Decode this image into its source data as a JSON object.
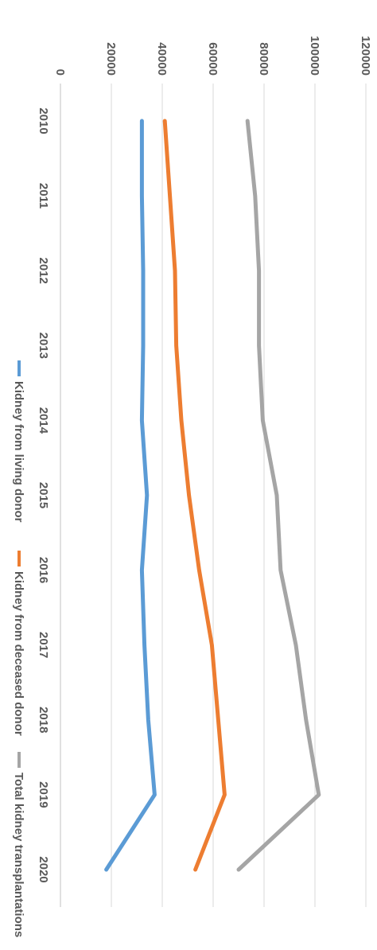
{
  "chart_data": {
    "type": "line",
    "orientation": "rotated-90-clockwise",
    "title": "",
    "xlabel": "",
    "ylabel": "",
    "x": [
      "2010",
      "2011",
      "2012",
      "2013",
      "2014",
      "2015",
      "2016",
      "2017",
      "2018",
      "2019",
      "2020"
    ],
    "ylim": [
      0,
      120000
    ],
    "yticks": [
      "0",
      "20000",
      "40000",
      "60000",
      "80000",
      "100000",
      "120000"
    ],
    "grid": true,
    "legend_position": "right",
    "series": [
      {
        "name": "Kidney from living donor",
        "color": "#5b9bd5",
        "values": [
          32000,
          32000,
          32500,
          32500,
          32000,
          34000,
          32000,
          33000,
          34500,
          37000,
          18000
        ]
      },
      {
        "name": "Kidney from deceased donor",
        "color": "#ed7d31",
        "values": [
          41000,
          43000,
          45000,
          45500,
          47500,
          50500,
          54500,
          59500,
          62000,
          64500,
          53000
        ]
      },
      {
        "name": "Total kidney transplantations",
        "color": "#a5a5a5",
        "values": [
          73500,
          76500,
          78000,
          78000,
          79500,
          85000,
          86500,
          92500,
          96500,
          101500,
          70000
        ]
      }
    ]
  }
}
